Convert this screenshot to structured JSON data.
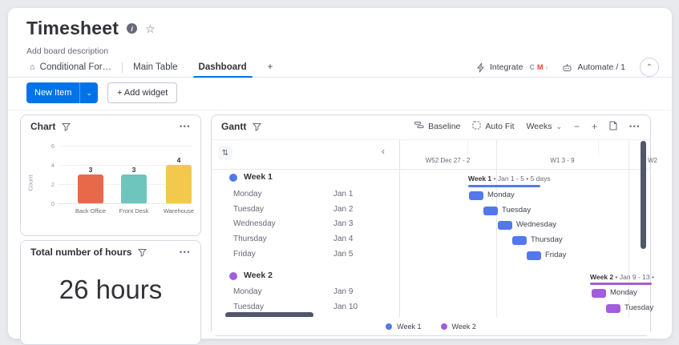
{
  "icons": {
    "info": "i",
    "star": "☆",
    "home": "⌂",
    "chevron_down": "⌄",
    "chevron_up": "⌃",
    "chevron_left": "‹",
    "collapse": "⇅",
    "menu": "•••",
    "minus": "−",
    "plus": "+"
  },
  "board": {
    "title": "Timesheet",
    "description": "Add board description",
    "tabs": [
      {
        "label": "Conditional For…",
        "icon": "home",
        "divider_after": true
      },
      {
        "label": "Main Table"
      },
      {
        "label": "Dashboard",
        "active": true
      },
      {
        "label": "+"
      }
    ],
    "topbar": {
      "integrate": "Integrate",
      "automate": "Automate / 1",
      "app_icons": [
        {
          "name": "app-icon-c",
          "glyph": "C",
          "color": "#8b97b5"
        },
        {
          "name": "app-icon-gmail",
          "glyph": "M",
          "color": "#ea4335"
        },
        {
          "name": "app-icon-chevron",
          "glyph": "›",
          "color": "#f3b8a5"
        }
      ]
    },
    "actions": {
      "new_item": "New Item",
      "add_widget": "+ Add widget"
    }
  },
  "chart_widget": {
    "title": "Chart",
    "menu": "•••"
  },
  "chart_data": {
    "type": "bar",
    "title": "Chart",
    "categories": [
      "Back Office",
      "Front Desk",
      "Warehouse"
    ],
    "values": [
      3,
      3,
      4
    ],
    "colors": [
      "#e8684a",
      "#6dc5bd",
      "#f2c94c"
    ],
    "xlabel": "",
    "ylabel": "Count",
    "ylim": [
      0,
      6
    ],
    "yticks": [
      0,
      2,
      4,
      6
    ],
    "grid": true,
    "legend_position": "none"
  },
  "hours_widget": {
    "title": "Total number of hours",
    "value": "26 hours",
    "menu": "•••"
  },
  "gantt": {
    "title": "Gantt",
    "menu": "•••",
    "toolbar": {
      "baseline": "Baseline",
      "auto_fit": "Auto Fit",
      "range": "Weeks",
      "zoom_out": "−",
      "zoom_in": "+"
    },
    "timeline_columns": [
      {
        "label": "W52",
        "dates": "Dec 27 - 2"
      },
      {
        "label": "W1",
        "dates": "3 - 9"
      },
      {
        "label": "W2",
        "dates": ""
      }
    ],
    "groups": [
      {
        "name": "Week 1",
        "color": "#5378ee",
        "summary_bold": "Week 1",
        "summary_rest": " • Jan 1 - 5 • 5 days",
        "rows": [
          {
            "name": "Monday",
            "date": "Jan 1"
          },
          {
            "name": "Tuesday",
            "date": "Jan 2"
          },
          {
            "name": "Wednesday",
            "date": "Jan 3"
          },
          {
            "name": "Thursday",
            "date": "Jan 4"
          },
          {
            "name": "Friday",
            "date": "Jan 5"
          }
        ]
      },
      {
        "name": "Week 2",
        "color": "#a25ddc",
        "summary_bold": "Week 2",
        "summary_rest": " • Jan 9 - 13 •",
        "rows": [
          {
            "name": "Monday",
            "date": "Jan 9"
          },
          {
            "name": "Tuesday",
            "date": "Jan 10"
          }
        ]
      }
    ],
    "legend": [
      {
        "label": "Week 1",
        "color": "#5378ee"
      },
      {
        "label": "Week 2",
        "color": "#a25ddc"
      }
    ]
  }
}
